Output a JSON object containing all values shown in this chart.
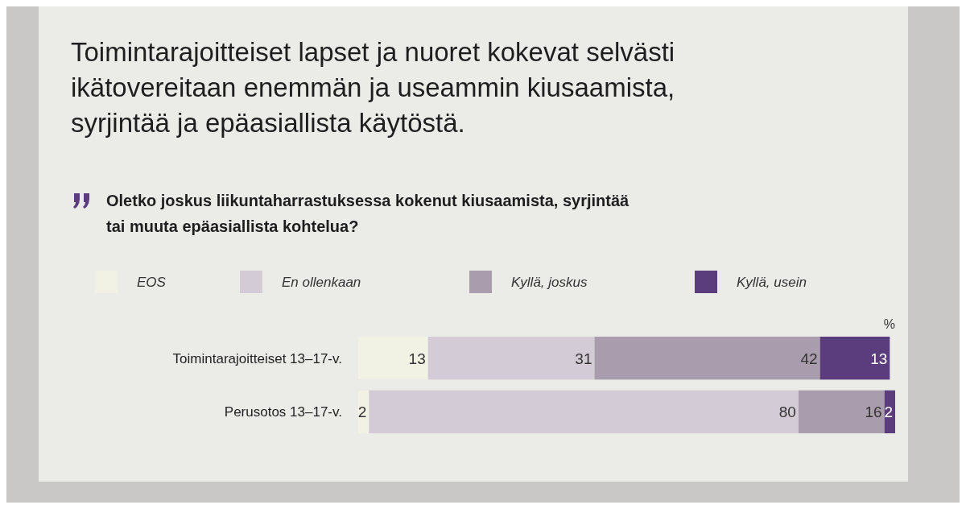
{
  "chart_data": {
    "type": "bar",
    "orientation": "horizontal",
    "stacked": true,
    "data_labels": true,
    "legend": "top",
    "title": "Toimintarajoitteiset lapset ja nuoret kokevat selvästi ikätovereitaan enemmän ja useammin kiusaamista, syrjintää ja epäasiallista käytöstä.",
    "subtitle": "Oletko joskus liikuntaharrastuksessa kokenut kiusaamista, syrjintää tai muuta epäasiallista kohtelua?",
    "annotations": [
      "%"
    ],
    "categories": [
      "Toimintarajoitteiset 13–17-v.",
      "Perusotos 13–17-v."
    ],
    "series": [
      {
        "name": "EOS",
        "color": "#f1f1e4",
        "values": [
          13,
          2
        ]
      },
      {
        "name": "En ollenkaan",
        "color": "#d3cbd6",
        "values": [
          31,
          80
        ]
      },
      {
        "name": "Kyllä, joskus",
        "color": "#a99cac",
        "values": [
          42,
          16
        ]
      },
      {
        "name": "Kyllä, usein",
        "color": "#5b3c7c",
        "values": [
          13,
          2
        ]
      }
    ]
  }
}
